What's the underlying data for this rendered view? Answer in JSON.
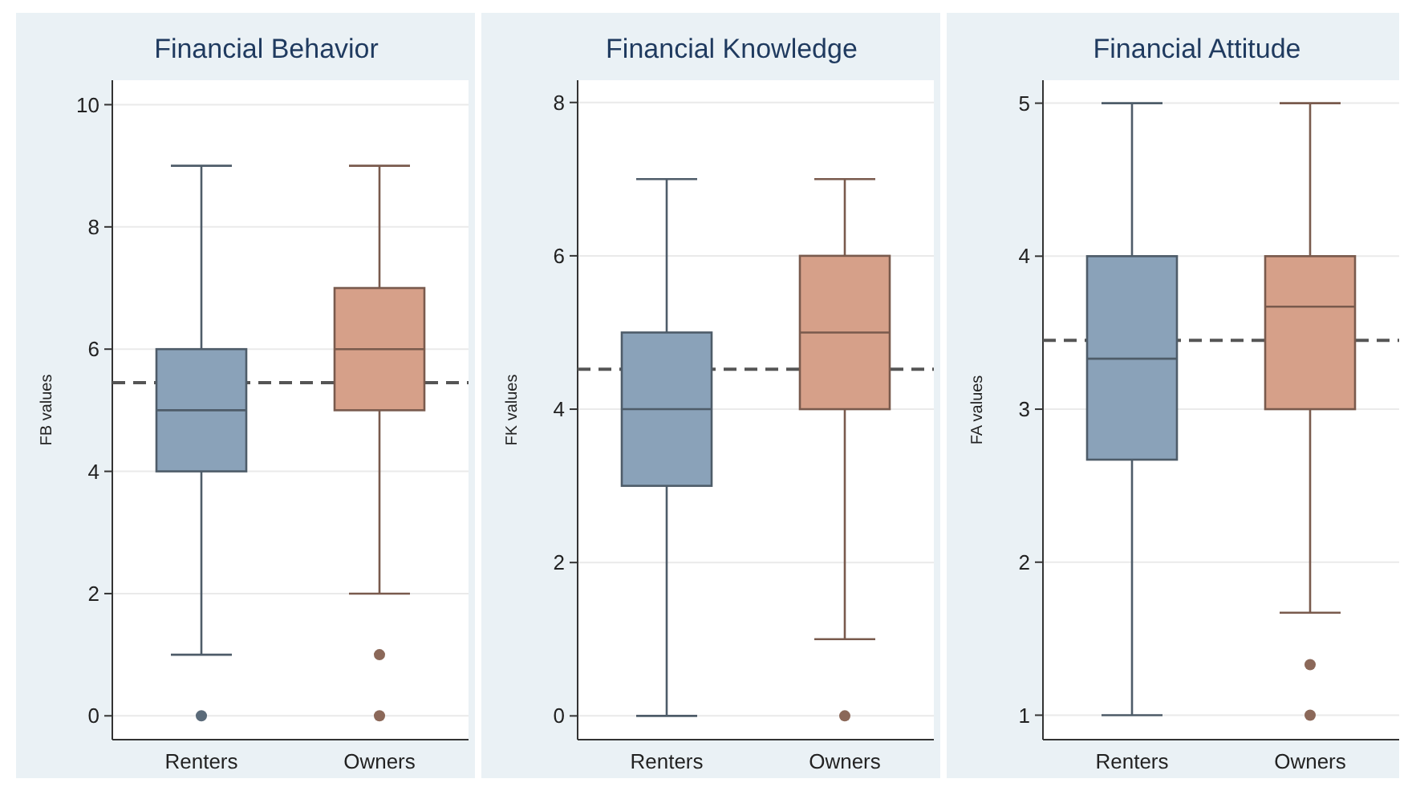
{
  "chart_data": [
    {
      "type": "box",
      "title": "Financial Behavior",
      "ylabel": "FB values",
      "categories": [
        "Renters",
        "Owners"
      ],
      "colors": [
        "#8aa2b9",
        "#d6a089"
      ],
      "boxes": [
        {
          "low": 1,
          "q1": 4,
          "median": 5,
          "q3": 6,
          "high": 9,
          "outliers": [
            0
          ]
        },
        {
          "low": 2,
          "q1": 5,
          "median": 6,
          "q3": 7,
          "high": 9,
          "outliers": [
            1,
            0
          ]
        }
      ],
      "ylim": [
        -0.39,
        10.4
      ],
      "yticks": [
        0,
        2,
        4,
        6,
        8,
        10
      ],
      "grid": "y",
      "ref_lines": [
        {
          "axis": "y",
          "value": 5.45,
          "color": "#555555",
          "line_style": "dashed"
        }
      ]
    },
    {
      "type": "box",
      "title": "Financial Knowledge",
      "ylabel": "FK values",
      "categories": [
        "Renters",
        "Owners"
      ],
      "colors": [
        "#8aa2b9",
        "#d6a089"
      ],
      "boxes": [
        {
          "low": 0,
          "q1": 3,
          "median": 4,
          "q3": 5,
          "high": 7
        },
        {
          "low": 1,
          "q1": 4,
          "median": 5,
          "q3": 6,
          "high": 7,
          "outliers": [
            0
          ]
        }
      ],
      "ylim": [
        -0.31,
        8.29
      ],
      "yticks": [
        0,
        2,
        4,
        6,
        8
      ],
      "grid": "y",
      "ref_lines": [
        {
          "axis": "y",
          "value": 4.52,
          "color": "#555555",
          "line_style": "dashed"
        }
      ]
    },
    {
      "type": "box",
      "title": "Financial Attitude",
      "ylabel": "FA values",
      "categories": [
        "Renters",
        "Owners"
      ],
      "colors": [
        "#8aa2b9",
        "#d6a089"
      ],
      "boxes": [
        {
          "low": 1,
          "q1": 2.67,
          "median": 3.33,
          "q3": 4,
          "high": 5
        },
        {
          "low": 1.67,
          "q1": 3,
          "median": 3.67,
          "q3": 4,
          "high": 5,
          "outliers": [
            1.33,
            1
          ]
        }
      ],
      "ylim": [
        0.84,
        5.15
      ],
      "yticks": [
        1,
        2,
        3,
        4,
        5
      ],
      "grid": "y",
      "ref_lines": [
        {
          "axis": "y",
          "value": 3.45,
          "color": "#555555",
          "line_style": "dashed"
        }
      ]
    }
  ]
}
